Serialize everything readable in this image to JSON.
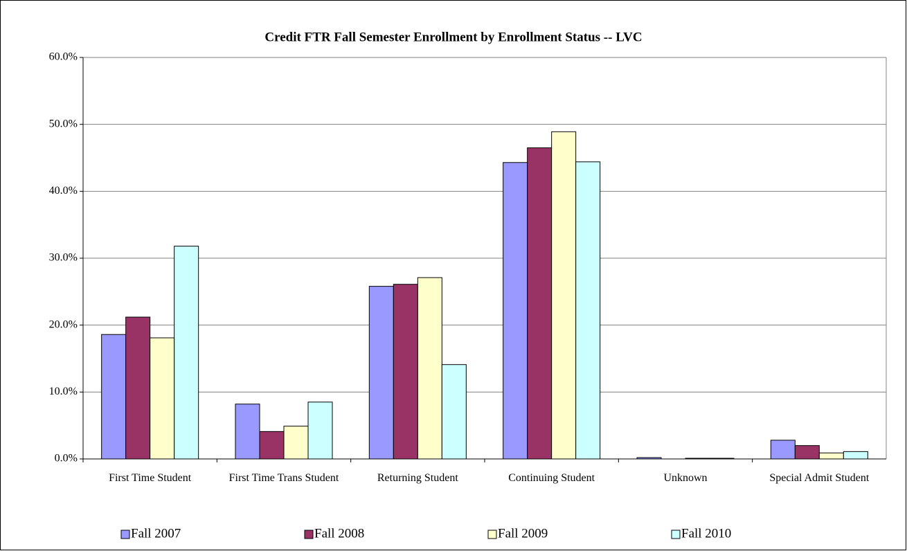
{
  "chart_data": {
    "type": "bar",
    "title": "Credit FTR Fall Semester Enrollment by Enrollment Status -- LVC",
    "categories": [
      "First Time Student",
      "First Time Trans Student",
      "Returning Student",
      "Continuing Student",
      "Unknown",
      "Special Admit Student"
    ],
    "series": [
      {
        "name": "Fall 2007",
        "color": "#9999ff",
        "values": [
          18.6,
          8.2,
          25.8,
          44.3,
          0.2,
          2.8
        ]
      },
      {
        "name": "Fall 2008",
        "color": "#993366",
        "values": [
          21.2,
          4.1,
          26.1,
          46.5,
          0,
          2.0
        ]
      },
      {
        "name": "Fall 2009",
        "color": "#ffffcc",
        "values": [
          18.1,
          4.9,
          27.1,
          48.9,
          0.1,
          0.9
        ]
      },
      {
        "name": "Fall 2010",
        "color": "#ccffff",
        "values": [
          31.8,
          8.5,
          14.1,
          44.4,
          0.1,
          1.1
        ]
      }
    ],
    "ylim": [
      0,
      60
    ],
    "yticks": [
      {
        "value": 0,
        "label": "0.0%"
      },
      {
        "value": 10,
        "label": "10.0%"
      },
      {
        "value": 20,
        "label": "20.0%"
      },
      {
        "value": 30,
        "label": "30.0%"
      },
      {
        "value": 40,
        "label": "40.0%"
      },
      {
        "value": 50,
        "label": "50.0%"
      },
      {
        "value": 60,
        "label": "60.0%"
      }
    ],
    "grid": true,
    "legend": "bottom"
  }
}
